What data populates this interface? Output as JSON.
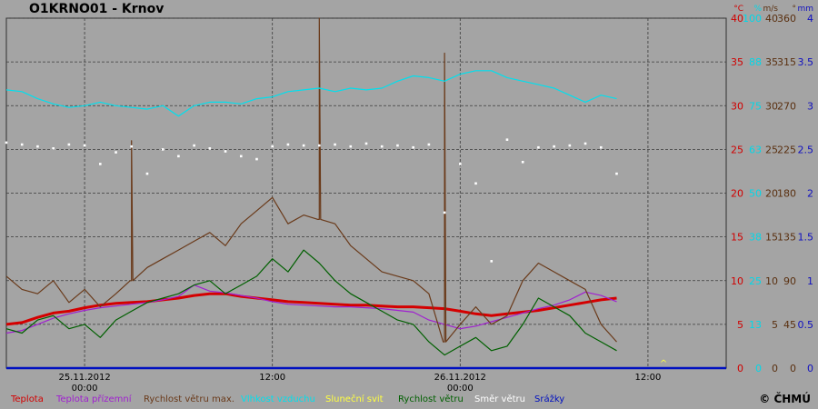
{
  "page_title": "O1KRNO01 - Krnov",
  "copyright": "© ČHMÚ",
  "chart_data": {
    "type": "line",
    "title": "O1KRNO01 - Krnov",
    "x_range": [
      "2012-11-24 19:00",
      "2012-11-26 17:00"
    ],
    "x_ticks": [
      {
        "x": "2012-11-25 00:00",
        "label": [
          "25.11.2012",
          "00:00"
        ]
      },
      {
        "x": "2012-11-25 12:00",
        "label": [
          "12:00"
        ]
      },
      {
        "x": "2012-11-26 00:00",
        "label": [
          "26.11.2012",
          "00:00"
        ]
      },
      {
        "x": "2012-11-26 12:00",
        "label": [
          "12:00"
        ]
      }
    ],
    "grid": true,
    "axes": [
      {
        "unit": "°C",
        "color": "#d00000",
        "range": [
          0,
          40
        ],
        "ticks": [
          "0",
          "5",
          "10",
          "15",
          "20",
          "25",
          "30",
          "35",
          "40"
        ]
      },
      {
        "unit": "%",
        "color": "#00d8e8",
        "range": [
          0,
          100
        ],
        "ticks": [
          "0",
          "13",
          "25",
          "38",
          "50",
          "63",
          "75",
          "88",
          "100"
        ]
      },
      {
        "unit": "m/s",
        "color": "#5a3010",
        "range": [
          0,
          40
        ],
        "ticks": [
          "0",
          "5",
          "10",
          "15",
          "20",
          "25",
          "30",
          "35",
          "40"
        ]
      },
      {
        "unit": "°",
        "color": "#5a3010",
        "range": [
          0,
          360
        ],
        "ticks": [
          "0",
          "45",
          "90",
          "135",
          "180",
          "225",
          "270",
          "315",
          "360"
        ]
      },
      {
        "unit": "mm",
        "color": "#1010c0",
        "range": [
          0,
          4
        ],
        "ticks": [
          "0",
          "0.5",
          "1",
          "1.5",
          "2",
          "2.5",
          "3",
          "3.5",
          "4"
        ]
      }
    ],
    "series": [
      {
        "name": "Teplota",
        "color": "#d40000",
        "style": "line-thick",
        "values": [
          5.0,
          5.2,
          5.8,
          6.3,
          6.5,
          6.9,
          7.2,
          7.4,
          7.5,
          7.6,
          7.8,
          8.0,
          8.3,
          8.5,
          8.5,
          8.2,
          8.0,
          7.8,
          7.6,
          7.5,
          7.4,
          7.3,
          7.2,
          7.2,
          7.1,
          7.0,
          7.0,
          6.9,
          6.8,
          6.5,
          6.2,
          6.0,
          6.2,
          6.4,
          6.6,
          6.9,
          7.2,
          7.5,
          7.8,
          8.0
        ]
      },
      {
        "name": "Teplota přízemní",
        "color": "#a020d0",
        "style": "line",
        "values": [
          4.0,
          4.3,
          5.0,
          5.7,
          6.2,
          6.6,
          6.9,
          7.1,
          7.3,
          7.5,
          7.8,
          8.2,
          9.5,
          8.8,
          8.6,
          8.3,
          8.0,
          7.6,
          7.3,
          7.2,
          7.1,
          7.0,
          7.0,
          6.9,
          6.8,
          6.6,
          6.4,
          5.5,
          5.0,
          4.5,
          4.8,
          5.3,
          5.8,
          6.3,
          6.8,
          7.2,
          7.8,
          8.7,
          8.3,
          7.6
        ]
      },
      {
        "name": "Rychlost větru max.",
        "color": "#6a3a1a",
        "style": "line",
        "values": [
          10.5,
          9.0,
          8.5,
          10.0,
          7.5,
          9.0,
          7.0,
          8.5,
          10.0,
          11.5,
          12.5,
          13.5,
          14.5,
          15.5,
          14.0,
          16.5,
          18.0,
          19.5,
          16.5,
          17.5,
          17.0,
          16.5,
          14.0,
          12.5,
          11.0,
          10.5,
          10.0,
          8.5,
          3.0,
          5.0,
          7.0,
          5.0,
          6.0,
          10.0,
          12.0,
          11.0,
          10.0,
          9.0,
          5.0,
          3.0
        ]
      },
      {
        "name": "Vlhkost vzduchu",
        "color": "#00e0ee",
        "style": "line",
        "values": [
          79.5,
          79,
          77,
          75.5,
          74.5,
          75,
          76,
          75,
          74.5,
          74,
          75,
          72,
          75,
          76,
          76,
          75.5,
          77,
          77.5,
          79,
          79.5,
          80,
          79,
          80,
          79.5,
          80,
          82,
          83.5,
          83,
          82,
          84,
          85,
          85,
          83,
          82,
          81,
          80,
          78,
          76,
          78,
          77
        ]
      },
      {
        "name": "Sluneční svit",
        "color": "#ffff40",
        "style": "marker",
        "points": [
          {
            "x": "2012-11-26 13:00",
            "value": 0.4
          }
        ]
      },
      {
        "name": "Rychlost větru",
        "color": "#006000",
        "style": "line",
        "values": [
          4.5,
          4.0,
          5.5,
          6.0,
          4.5,
          5.0,
          3.5,
          5.5,
          6.5,
          7.5,
          8.0,
          8.5,
          9.5,
          10.0,
          8.5,
          9.5,
          10.5,
          12.5,
          11.0,
          13.5,
          12.0,
          10.0,
          8.5,
          7.5,
          6.5,
          5.5,
          5.0,
          3.0,
          1.5,
          2.5,
          3.5,
          2.0,
          2.5,
          5.0,
          8.0,
          7.0,
          6.0,
          4.0,
          3.0,
          2.0
        ]
      },
      {
        "name": "Směr větru",
        "color": "#ffffff",
        "style": "dots",
        "values": [
          232,
          230,
          228,
          226,
          230,
          229,
          210,
          222,
          228,
          200,
          225,
          218,
          229,
          226,
          223,
          218,
          215,
          228,
          230,
          229,
          229,
          230,
          228,
          231,
          228,
          229,
          227,
          230,
          160,
          210,
          190,
          110,
          235,
          212,
          227,
          228,
          229,
          231,
          227,
          200
        ]
      },
      {
        "name": "Srážky",
        "color": "#0010c0",
        "style": "bar",
        "values": [
          0,
          0,
          0,
          0,
          0,
          0,
          0,
          0,
          0,
          0,
          0,
          0,
          0,
          0,
          0,
          0,
          0,
          0,
          0,
          0,
          0,
          0,
          0,
          0,
          0,
          0,
          0,
          0,
          0,
          0,
          0,
          0,
          0,
          0,
          0,
          0,
          0,
          0,
          0,
          0
        ]
      }
    ],
    "x_sample_start": "2012-11-24 19:00",
    "x_sample_step_hours": 1,
    "spikes": [
      {
        "series": "Rychlost větru max.",
        "x": "2012-11-25 03:00",
        "value": 26.0
      },
      {
        "series": "Rychlost větru max.",
        "x": "2012-11-25 15:00",
        "value": 40.0
      },
      {
        "series": "Rychlost větru max.",
        "x": "2012-11-25 23:00",
        "value": 36.0
      }
    ]
  }
}
